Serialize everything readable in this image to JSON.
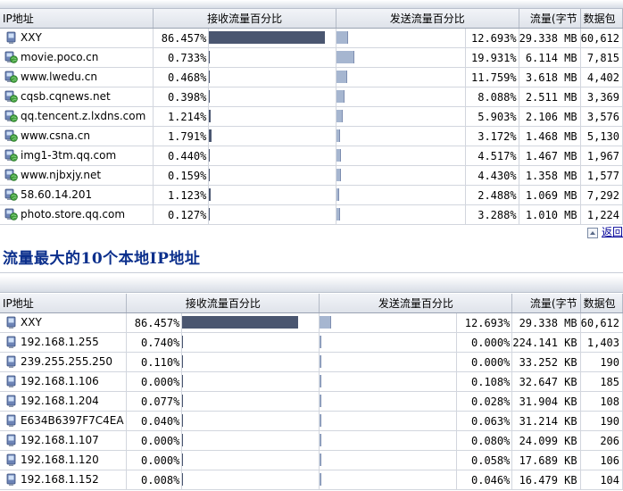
{
  "top_table": {
    "headers": {
      "ip": "IP地址",
      "recv": "接收流量百分比",
      "send": "发送流量百分比",
      "bytes": "流量(字节",
      "packets": "数据包"
    },
    "rows": [
      {
        "ip": "XXY",
        "recv_pct": "86.457%",
        "recv_fraction": 0.86457,
        "send_pct": "12.693%",
        "send_fraction": 0.12693,
        "bytes": "29.338 MB",
        "packets": "60,612"
      },
      {
        "ip": "movie.poco.cn",
        "recv_pct": "0.733%",
        "recv_fraction": 0.00733,
        "send_pct": "19.931%",
        "send_fraction": 0.19931,
        "bytes": "6.114 MB",
        "packets": "7,815"
      },
      {
        "ip": "www.lwedu.cn",
        "recv_pct": "0.468%",
        "recv_fraction": 0.00468,
        "send_pct": "11.759%",
        "send_fraction": 0.11759,
        "bytes": "3.618 MB",
        "packets": "4,402"
      },
      {
        "ip": "cqsb.cqnews.net",
        "recv_pct": "0.398%",
        "recv_fraction": 0.00398,
        "send_pct": "8.088%",
        "send_fraction": 0.08088,
        "bytes": "2.511 MB",
        "packets": "3,369"
      },
      {
        "ip": "qq.tencent.z.lxdns.com",
        "recv_pct": "1.214%",
        "recv_fraction": 0.01214,
        "send_pct": "5.903%",
        "send_fraction": 0.05903,
        "bytes": "2.106 MB",
        "packets": "3,576"
      },
      {
        "ip": "www.csna.cn",
        "recv_pct": "1.791%",
        "recv_fraction": 0.01791,
        "send_pct": "3.172%",
        "send_fraction": 0.03172,
        "bytes": "1.468 MB",
        "packets": "5,130"
      },
      {
        "ip": "img1-3tm.qq.com",
        "recv_pct": "0.440%",
        "recv_fraction": 0.0044,
        "send_pct": "4.517%",
        "send_fraction": 0.04517,
        "bytes": "1.467 MB",
        "packets": "1,967"
      },
      {
        "ip": "www.njbxjy.net",
        "recv_pct": "0.159%",
        "recv_fraction": 0.00159,
        "send_pct": "4.430%",
        "send_fraction": 0.0443,
        "bytes": "1.358 MB",
        "packets": "1,577"
      },
      {
        "ip": "58.60.14.201",
        "recv_pct": "1.123%",
        "recv_fraction": 0.01123,
        "send_pct": "2.488%",
        "send_fraction": 0.02488,
        "bytes": "1.069 MB",
        "packets": "7,292"
      },
      {
        "ip": "photo.store.qq.com",
        "recv_pct": "0.127%",
        "recv_fraction": 0.00127,
        "send_pct": "3.288%",
        "send_fraction": 0.03288,
        "bytes": "1.010 MB",
        "packets": "1,224"
      }
    ]
  },
  "back_link": "返回",
  "section_title": "流量最大的10个本地IP地址",
  "bottom_table": {
    "headers": {
      "ip": "IP地址",
      "recv": "接收流量百分比",
      "send": "发送流量百分比",
      "bytes": "流量(字节",
      "packets": "数据包"
    },
    "rows": [
      {
        "ip": "XXY",
        "recv_pct": "86.457%",
        "recv_fraction": 0.86457,
        "send_pct": "12.693%",
        "send_fraction": 0.12693,
        "bytes": "29.338 MB",
        "packets": "60,612"
      },
      {
        "ip": "192.168.1.255",
        "recv_pct": "0.740%",
        "recv_fraction": 0.0074,
        "send_pct": "0.000%",
        "send_fraction": 0.0,
        "bytes": "224.141 KB",
        "packets": "1,403"
      },
      {
        "ip": "239.255.255.250",
        "recv_pct": "0.110%",
        "recv_fraction": 0.0011,
        "send_pct": "0.000%",
        "send_fraction": 0.0,
        "bytes": "33.252 KB",
        "packets": "190"
      },
      {
        "ip": "192.168.1.106",
        "recv_pct": "0.000%",
        "recv_fraction": 0.0,
        "send_pct": "0.108%",
        "send_fraction": 0.00108,
        "bytes": "32.647 KB",
        "packets": "185"
      },
      {
        "ip": "192.168.1.204",
        "recv_pct": "0.077%",
        "recv_fraction": 0.00077,
        "send_pct": "0.028%",
        "send_fraction": 0.00028,
        "bytes": "31.904 KB",
        "packets": "108"
      },
      {
        "ip": "E634B6397F7C4EA",
        "recv_pct": "0.040%",
        "recv_fraction": 0.0004,
        "send_pct": "0.063%",
        "send_fraction": 0.00063,
        "bytes": "31.214 KB",
        "packets": "190"
      },
      {
        "ip": "192.168.1.107",
        "recv_pct": "0.000%",
        "recv_fraction": 0.0,
        "send_pct": "0.080%",
        "send_fraction": 0.0008,
        "bytes": "24.099 KB",
        "packets": "206"
      },
      {
        "ip": "192.168.1.120",
        "recv_pct": "0.000%",
        "recv_fraction": 0.0,
        "send_pct": "0.058%",
        "send_fraction": 0.00058,
        "bytes": "17.689 KB",
        "packets": "106"
      },
      {
        "ip": "192.168.1.152",
        "recv_pct": "0.008%",
        "recv_fraction": 8e-05,
        "send_pct": "0.046%",
        "send_fraction": 0.00046,
        "bytes": "16.479 KB",
        "packets": "104"
      }
    ]
  },
  "colors": {
    "recv_bar": "#4a5670",
    "send_bar": "#a6b6d0",
    "title": "#0b2f8c",
    "link": "#000099"
  },
  "icons": {
    "remote_host": "globe-computer-icon",
    "local_host": "computer-icon"
  }
}
